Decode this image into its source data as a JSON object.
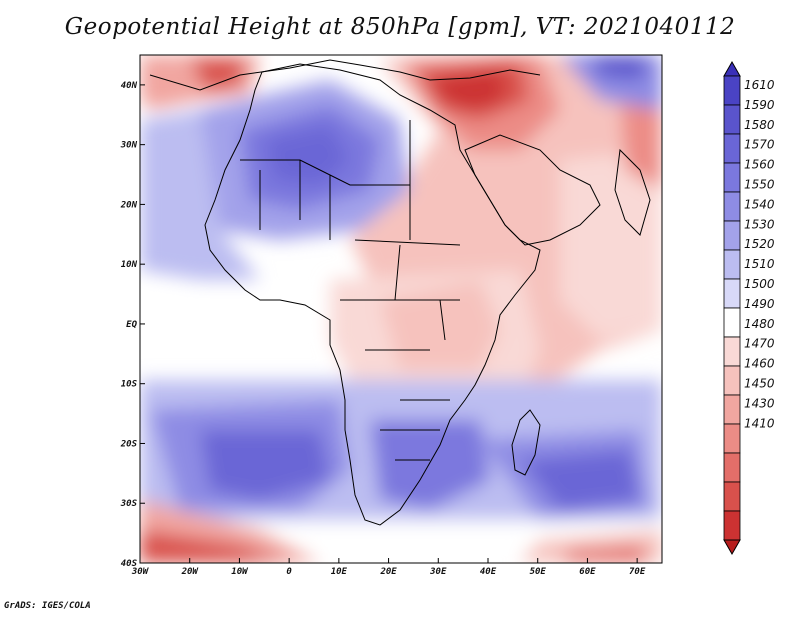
{
  "title": "Geopotential Height at 850hPa [gpm], VT: 2021040112",
  "credit": "GrADS: IGES/COLA",
  "map": {
    "lon_range": [
      -30,
      75
    ],
    "lat_range": [
      -40,
      45
    ],
    "x_ticks": [
      "30W",
      "20W",
      "10W",
      "0",
      "10E",
      "20E",
      "30E",
      "40E",
      "50E",
      "60E",
      "70E"
    ],
    "y_ticks": [
      "40N",
      "30N",
      "20N",
      "10N",
      "EQ",
      "10S",
      "20S",
      "30S",
      "40S"
    ]
  },
  "colorbar": {
    "levels": [
      "1610",
      "1590",
      "1580",
      "1570",
      "1560",
      "1550",
      "1540",
      "1530",
      "1520",
      "1510",
      "1500",
      "1490",
      "1480",
      "1470",
      "1460",
      "1450",
      "1430",
      "1410"
    ],
    "colors": [
      "#3a30b8",
      "#4a43c4",
      "#5a54cc",
      "#6a66d6",
      "#7b78de",
      "#8e8ce4",
      "#a3a2ea",
      "#bcbdf1",
      "#d8d9f8",
      "#ffffff",
      "#f9d9d6",
      "#f6c2bd",
      "#f1a6a0",
      "#ec8c86",
      "#e36e69",
      "#d9514c",
      "#cc3232",
      "#b71d1d"
    ]
  }
}
